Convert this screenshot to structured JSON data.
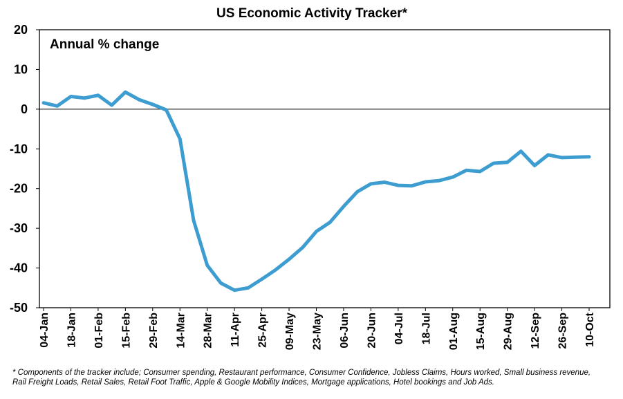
{
  "chart_data": {
    "type": "line",
    "title": "US Economic Activity Tracker*",
    "subtitle": "Annual % change",
    "xlabel": "",
    "ylabel": "",
    "ylim": [
      -50,
      20
    ],
    "yticks": [
      20,
      10,
      0,
      -10,
      -20,
      -30,
      -40,
      -50
    ],
    "grid": false,
    "x_tick_labels": [
      "04-Jan",
      "18-Jan",
      "01-Feb",
      "15-Feb",
      "29-Feb",
      "14-Mar",
      "28-Mar",
      "11-Apr",
      "25-Apr",
      "09-May",
      "23-May",
      "06-Jun",
      "20-Jun",
      "04-Jul",
      "18-Jul",
      "01-Aug",
      "15-Aug",
      "29-Aug",
      "12-Sep",
      "26-Sep",
      "10-Oct"
    ],
    "x": [
      "04-Jan",
      "11-Jan",
      "18-Jan",
      "25-Jan",
      "01-Feb",
      "08-Feb",
      "15-Feb",
      "22-Feb",
      "29-Feb",
      "07-Mar",
      "14-Mar",
      "21-Mar",
      "28-Mar",
      "04-Apr",
      "11-Apr",
      "18-Apr",
      "25-Apr",
      "02-May",
      "09-May",
      "16-May",
      "23-May",
      "30-May",
      "06-Jun",
      "13-Jun",
      "20-Jun",
      "27-Jun",
      "04-Jul",
      "11-Jul",
      "18-Jul",
      "25-Jul",
      "01-Aug",
      "08-Aug",
      "15-Aug",
      "22-Aug",
      "29-Aug",
      "05-Sep",
      "12-Sep",
      "19-Sep",
      "26-Sep",
      "03-Oct",
      "10-Oct"
    ],
    "series": [
      {
        "color": "#3d9dd0",
        "values": [
          1.6,
          0.8,
          3.2,
          2.8,
          3.5,
          1.0,
          4.3,
          2.4,
          1.2,
          -0.2,
          -7.5,
          -28.0,
          -39.3,
          -43.8,
          -45.6,
          -45.0,
          -42.8,
          -40.5,
          -37.8,
          -34.8,
          -30.8,
          -28.5,
          -24.5,
          -20.8,
          -18.8,
          -18.4,
          -19.2,
          -19.3,
          -18.3,
          -18.0,
          -17.1,
          -15.4,
          -15.7,
          -13.6,
          -13.4,
          -10.6,
          -14.2,
          -11.5,
          -12.2,
          -12.1,
          -12.0
        ]
      }
    ]
  },
  "footnote": "* Components of the tracker include; Consumer spending, Restaurant performance, Consumer Confidence, Jobless Claims, Hours worked, Small business revenue, Rail Freight Loads, Retail Sales, Retail Foot Traffic, Apple & Google Mobility Indices, Mortgage applications, Hotel bookings and Job Ads."
}
